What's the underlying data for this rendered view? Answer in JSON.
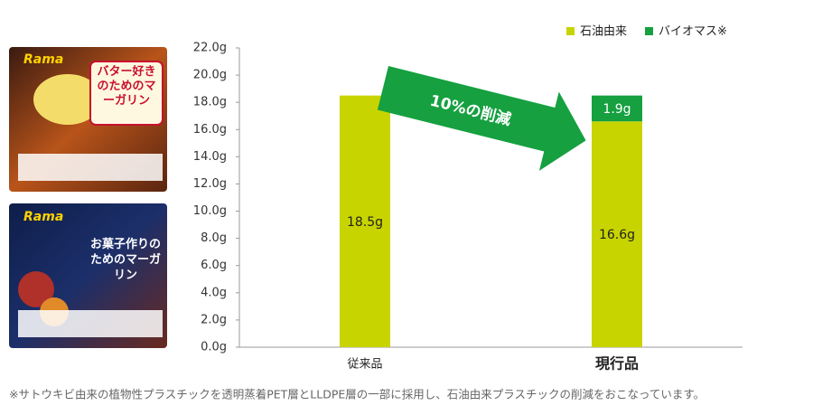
{
  "chart_data": {
    "type": "stacked-bar",
    "categories": [
      "従来品",
      "現行品"
    ],
    "series": [
      {
        "name": "石油由来",
        "color": "#c8d400",
        "values": [
          18.5,
          16.6
        ],
        "value_labels": [
          "18.5g",
          "16.6g"
        ]
      },
      {
        "name": "バイオマス※",
        "color": "#16a040",
        "values": [
          null,
          1.9
        ],
        "value_labels": [
          null,
          "1.9g"
        ]
      }
    ],
    "ylim": [
      0,
      22
    ],
    "yticks": [
      {
        "value": 0,
        "label": "0.0g"
      },
      {
        "value": 2,
        "label": "2.0g"
      },
      {
        "value": 4,
        "label": "4.0g"
      },
      {
        "value": 6,
        "label": "6.0g"
      },
      {
        "value": 8,
        "label": "8.0g"
      },
      {
        "value": 10,
        "label": "10.0g"
      },
      {
        "value": 12,
        "label": "12.0g"
      },
      {
        "value": 14,
        "label": "14.0g"
      },
      {
        "value": 16,
        "label": "16.0g"
      },
      {
        "value": 18,
        "label": "18.0g"
      },
      {
        "value": 20,
        "label": "20.0g"
      },
      {
        "value": 22,
        "label": "22.0g"
      }
    ],
    "grid": false,
    "annotation": "10%の削減",
    "footnote": "※サトウキビ由来の植物性プラスチックを透明蒸着PET層とLLDPE層の一部に採用し、石油由来プラスチックの削減をおこなっています。"
  },
  "products": [
    {
      "brand": "Rama",
      "name": "バター好きのためのマーガリン"
    },
    {
      "brand": "Rama",
      "name": "お菓子作りのためのマーガリン"
    }
  ]
}
